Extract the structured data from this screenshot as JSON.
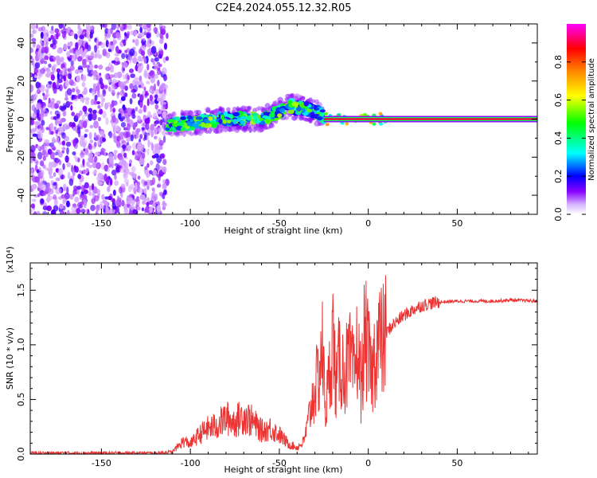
{
  "figure": {
    "title": "C2E4.2024.055.12.32.R05"
  },
  "chart_data": [
    {
      "type": "heatmap",
      "title": "C2E4.2024.055.12.32.R05",
      "xlabel": "Height of straight line (km)",
      "ylabel": "Frequency (Hz)",
      "xlim": [
        -190,
        95
      ],
      "ylim": [
        -50,
        50
      ],
      "xticks": [
        -150,
        -100,
        -50,
        0,
        50
      ],
      "xtick_labels": [
        "-150",
        "-100",
        "-50",
        "0",
        "50"
      ],
      "yticks": [
        -40,
        -20,
        0,
        20,
        40
      ],
      "ytick_labels": [
        "-40",
        "-20",
        "0",
        "20",
        "40"
      ],
      "colorbar": {
        "label": "Normalized spectral amplitude",
        "range": [
          0,
          1
        ],
        "ticks": [
          0.0,
          0.2,
          0.4,
          0.6,
          0.8
        ],
        "tick_labels": [
          "0.0",
          "0.2",
          "0.4",
          "0.6",
          "0.8"
        ],
        "colormap": [
          "#ffffff",
          "#8800ff",
          "#0000ff",
          "#00ffff",
          "#00ff00",
          "#ffff00",
          "#ff8800",
          "#ff0000",
          "#ff00ff"
        ]
      },
      "regions": [
        {
          "name": "noise",
          "x": [
            -190,
            -113
          ],
          "freq": [
            -50,
            50
          ],
          "amplitude": [
            0.0,
            0.15
          ]
        },
        {
          "name": "trace",
          "x": [
            -113,
            -25
          ],
          "freq_center": [
            [
              -113,
              -3
            ],
            [
              -100,
              -2
            ],
            [
              -80,
              0
            ],
            [
              -60,
              0
            ],
            [
              -50,
              4
            ],
            [
              -45,
              7
            ],
            [
              -40,
              6
            ],
            [
              -33,
              5
            ],
            [
              -27,
              3
            ],
            [
              -25,
              1
            ]
          ],
          "amplitude": [
            0.2,
            0.6
          ]
        },
        {
          "name": "carrier",
          "x": [
            -25,
            95
          ],
          "freq": [
            0,
            0
          ],
          "amplitude": [
            0.8,
            1.0
          ]
        }
      ]
    },
    {
      "type": "line",
      "xlabel": "Height of straight line (km)",
      "ylabel": "SNR (10 * v/v)",
      "yscale_label": "(x10⁴)",
      "xlim": [
        -190,
        95
      ],
      "ylim": [
        0,
        1.75
      ],
      "xticks": [
        -150,
        -100,
        -50,
        0,
        50
      ],
      "xtick_labels": [
        "-150",
        "-100",
        "-50",
        "0",
        "50"
      ],
      "yticks": [
        0.0,
        0.5,
        1.0,
        1.5
      ],
      "ytick_labels": [
        "0.0",
        "0.5",
        "1.0",
        "1.5"
      ],
      "series": [
        {
          "color": "#ee3333",
          "x": [
            -190,
            -150,
            -120,
            -110,
            -104,
            -100,
            -95,
            -90,
            -85,
            -80,
            -75,
            -70,
            -65,
            -60,
            -55,
            -50,
            -45,
            -40,
            -36,
            -32,
            -30,
            -28,
            -26,
            -24,
            -22,
            -20,
            -18,
            -16,
            -14,
            -12,
            -10,
            -8,
            -6,
            -4,
            -2,
            0,
            2,
            4,
            6,
            8,
            10,
            12,
            15,
            20,
            25,
            30,
            35,
            40,
            50,
            60,
            70,
            80,
            95
          ],
          "y": [
            0.01,
            0.01,
            0.01,
            0.02,
            0.1,
            0.08,
            0.15,
            0.2,
            0.22,
            0.28,
            0.25,
            0.3,
            0.25,
            0.18,
            0.2,
            0.15,
            0.08,
            0.05,
            0.1,
            0.45,
            0.6,
            0.7,
            1.0,
            0.4,
            0.7,
            1.1,
            0.6,
            0.9,
            0.75,
            0.8,
            0.85,
            0.7,
            1.0,
            0.6,
            1.1,
            0.9,
            0.7,
            0.95,
            1.05,
            1.0,
            1.1,
            1.15,
            1.2,
            1.27,
            1.32,
            1.36,
            1.38,
            1.39,
            1.4,
            1.4,
            1.4,
            1.41,
            1.4
          ]
        }
      ]
    }
  ]
}
